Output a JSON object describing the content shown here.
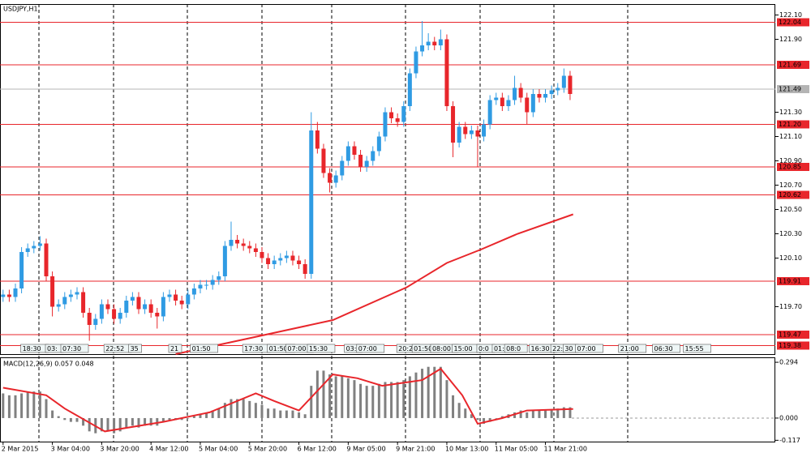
{
  "chart_data": {
    "type": "candlestick",
    "title": "USDJPY,H1",
    "x": [
      0,
      2,
      4,
      6,
      8,
      10,
      12,
      14,
      16,
      18,
      20,
      22,
      24,
      26,
      28,
      30,
      32,
      34,
      36,
      38,
      40,
      42,
      44,
      46,
      48,
      50,
      52,
      54,
      56,
      58,
      60,
      62,
      64,
      66,
      68,
      70,
      72,
      74,
      76,
      78,
      80,
      82,
      84,
      86,
      88,
      90,
      92,
      94,
      96,
      98,
      100,
      102,
      104,
      106,
      108,
      110,
      112,
      114,
      116,
      118,
      120,
      122,
      124,
      126,
      128,
      130,
      132,
      134,
      136,
      138,
      140,
      142,
      144,
      146,
      148,
      150,
      152,
      154,
      156,
      158,
      160,
      162,
      164,
      166,
      168,
      170,
      172,
      174,
      176,
      178,
      180,
      182,
      184
    ],
    "open": [
      119.78,
      119.8,
      119.78,
      119.85,
      120.15,
      120.18,
      120.2,
      120.22,
      119.95,
      119.7,
      119.72,
      119.78,
      119.8,
      119.82,
      119.65,
      119.55,
      119.6,
      119.72,
      119.68,
      119.6,
      119.65,
      119.75,
      119.78,
      119.68,
      119.72,
      119.65,
      119.62,
      119.78,
      119.8,
      119.75,
      119.72,
      119.8,
      119.85,
      119.88,
      119.88,
      119.92,
      119.95,
      120.2,
      120.25,
      120.22,
      120.2,
      120.18,
      120.15,
      120.1,
      120.05,
      120.08,
      120.1,
      120.12,
      120.08,
      120.05,
      119.97,
      121.15,
      121.0,
      120.8,
      120.72,
      120.78,
      120.9,
      121.02,
      120.95,
      120.85,
      120.9,
      120.98,
      121.1,
      121.3,
      121.25,
      121.22,
      121.35,
      121.62,
      121.8,
      121.85,
      121.88,
      121.85,
      121.9,
      121.35,
      121.05,
      121.18,
      121.12,
      121.15,
      121.1,
      121.2,
      121.4,
      121.42,
      121.35,
      121.4,
      121.5,
      121.42,
      121.3,
      121.45,
      121.42,
      121.45,
      121.48,
      121.5,
      121.6
    ],
    "high": [
      119.84,
      119.84,
      119.89,
      120.19,
      120.22,
      120.24,
      120.28,
      120.26,
      119.99,
      119.76,
      119.82,
      119.84,
      119.86,
      119.86,
      119.69,
      119.64,
      119.76,
      119.76,
      119.72,
      119.69,
      119.79,
      119.82,
      119.82,
      119.76,
      119.76,
      119.69,
      119.82,
      119.84,
      119.84,
      119.79,
      119.84,
      119.89,
      119.92,
      119.92,
      119.96,
      119.99,
      120.24,
      120.4,
      120.29,
      120.26,
      120.24,
      120.22,
      120.19,
      120.14,
      120.12,
      120.14,
      120.16,
      120.16,
      120.12,
      120.09,
      121.3,
      121.22,
      121.04,
      120.84,
      120.82,
      120.94,
      121.06,
      121.06,
      120.99,
      120.94,
      121.02,
      121.14,
      121.34,
      121.34,
      121.29,
      121.39,
      121.66,
      121.84,
      122.05,
      121.95,
      121.92,
      121.98,
      121.94,
      121.39,
      121.22,
      121.22,
      121.19,
      121.19,
      121.24,
      121.44,
      121.46,
      121.46,
      121.44,
      121.6,
      121.54,
      121.46,
      121.49,
      121.49,
      121.49,
      121.52,
      121.54,
      121.66,
      121.64
    ],
    "low": [
      119.74,
      119.74,
      119.74,
      119.81,
      120.11,
      120.14,
      120.16,
      119.91,
      119.62,
      119.66,
      119.68,
      119.74,
      119.76,
      119.61,
      119.42,
      119.51,
      119.56,
      119.64,
      119.56,
      119.56,
      119.61,
      119.71,
      119.64,
      119.64,
      119.61,
      119.52,
      119.58,
      119.74,
      119.71,
      119.68,
      119.68,
      119.76,
      119.81,
      119.84,
      119.84,
      119.88,
      119.91,
      120.16,
      120.18,
      120.16,
      120.14,
      120.11,
      120.06,
      120.01,
      120.01,
      120.04,
      120.06,
      120.04,
      120.01,
      119.93,
      119.93,
      120.96,
      120.76,
      120.64,
      120.68,
      120.74,
      120.86,
      120.91,
      120.81,
      120.81,
      120.86,
      120.94,
      121.06,
      121.21,
      121.18,
      121.18,
      121.31,
      121.58,
      121.76,
      121.81,
      121.81,
      121.81,
      121.31,
      120.93,
      121.01,
      121.08,
      121.08,
      120.85,
      121.06,
      121.16,
      121.36,
      121.31,
      121.31,
      121.36,
      121.38,
      121.2,
      121.26,
      121.38,
      121.38,
      121.41,
      121.44,
      121.46,
      121.4
    ],
    "close": [
      119.8,
      119.78,
      119.85,
      120.15,
      120.18,
      120.2,
      120.22,
      119.95,
      119.7,
      119.72,
      119.78,
      119.8,
      119.82,
      119.65,
      119.55,
      119.6,
      119.72,
      119.68,
      119.6,
      119.65,
      119.75,
      119.78,
      119.68,
      119.72,
      119.65,
      119.62,
      119.78,
      119.8,
      119.75,
      119.72,
      119.8,
      119.85,
      119.88,
      119.88,
      119.92,
      119.95,
      120.2,
      120.25,
      120.22,
      120.2,
      120.18,
      120.15,
      120.1,
      120.05,
      120.08,
      120.1,
      120.12,
      120.08,
      120.05,
      119.97,
      121.15,
      121.0,
      120.8,
      120.72,
      120.78,
      120.9,
      121.02,
      120.95,
      120.85,
      120.9,
      120.98,
      121.1,
      121.3,
      121.25,
      121.22,
      121.35,
      121.62,
      121.8,
      121.85,
      121.88,
      121.85,
      121.9,
      121.35,
      121.05,
      121.18,
      121.12,
      121.15,
      121.1,
      121.2,
      121.4,
      121.42,
      121.35,
      121.4,
      121.5,
      121.42,
      121.3,
      121.45,
      121.42,
      121.45,
      121.48,
      121.5,
      121.6,
      121.45
    ],
    "up_color": "#2f9be3",
    "down_color": "#e8262b",
    "xlim": [
      -1,
      250.6
    ],
    "ylim": [
      119.31,
      122.19
    ],
    "yticks": [
      {
        "value": 122.1,
        "label": "122.10"
      },
      {
        "value": 121.9,
        "label": "121.90"
      },
      {
        "value": 121.3,
        "label": "121.30"
      },
      {
        "value": 121.1,
        "label": "121.10"
      },
      {
        "value": 120.9,
        "label": "120.90"
      },
      {
        "value": 120.7,
        "label": "120.70"
      },
      {
        "value": 120.5,
        "label": "120.50"
      },
      {
        "value": 120.3,
        "label": "120.30"
      },
      {
        "value": 120.1,
        "label": "120.10"
      },
      {
        "value": 119.7,
        "label": "119.70"
      }
    ],
    "xticks": [
      {
        "value": 0,
        "label": "2 Mar 2015"
      },
      {
        "value": 16,
        "label": "3 Mar 04:00"
      },
      {
        "value": 32,
        "label": "3 Mar 20:00"
      },
      {
        "value": 48,
        "label": "4 Mar 12:00"
      },
      {
        "value": 64,
        "label": "5 Mar 04:00"
      },
      {
        "value": 80,
        "label": "5 Mar 20:00"
      },
      {
        "value": 96,
        "label": "6 Mar 12:00"
      },
      {
        "value": 112,
        "label": "9 Mar 05:00"
      },
      {
        "value": 128,
        "label": "9 Mar 21:00"
      },
      {
        "value": 144,
        "label": "10 Mar 13:00"
      },
      {
        "value": 160,
        "label": "11 Mar 05:00"
      },
      {
        "value": 176,
        "label": "11 Mar 21:00"
      }
    ],
    "levels": {
      "color": "#e8262b",
      "values": [
        122.04,
        121.69,
        {
          "value": 121.2,
          "label": "121.20"
        },
        120.85,
        120.62,
        119.91,
        119.47,
        119.38
      ]
    },
    "current": {
      "color": "#b4b4b4",
      "value": 121.49
    },
    "moving_average": {
      "color": "#e8262b",
      "x": [
        56,
        78,
        107,
        131,
        144,
        155,
        167,
        185
      ],
      "values": [
        119.31,
        119.43,
        119.59,
        119.86,
        120.06,
        120.17,
        120.3,
        120.46
      ]
    },
    "markers": [
      {
        "x": 6,
        "label": "18:30"
      },
      {
        "x": 14,
        "label": "03:"
      },
      {
        "x": 19,
        "label": "07:30"
      },
      {
        "x": 33,
        "label": "22:52"
      },
      {
        "x": 41,
        "label": "35"
      },
      {
        "x": 54,
        "label": "21"
      },
      {
        "x": 61,
        "label": "01:50"
      },
      {
        "x": 78,
        "label": "17:30"
      },
      {
        "x": 86,
        "label": "01:50"
      },
      {
        "x": 92,
        "label": "07:00"
      },
      {
        "x": 99,
        "label": "15:30"
      },
      {
        "x": 111,
        "label": "03:"
      },
      {
        "x": 115,
        "label": "07:00"
      },
      {
        "x": 128,
        "label": "20:2"
      },
      {
        "x": 133,
        "label": "01:50"
      },
      {
        "x": 139,
        "label": "08:00"
      },
      {
        "x": 146,
        "label": "15:00"
      },
      {
        "x": 154,
        "label": "0:0"
      },
      {
        "x": 159,
        "label": "01:50"
      },
      {
        "x": 163,
        "label": "08:0"
      },
      {
        "x": 171,
        "label": "16:30"
      },
      {
        "x": 178,
        "label": "22:30"
      },
      {
        "x": 182,
        "label": "30"
      },
      {
        "x": 186,
        "label": "07:00"
      },
      {
        "x": 200,
        "label": "21:00"
      },
      {
        "x": 211,
        "label": "06:30"
      },
      {
        "x": 221,
        "label": "15:55"
      }
    ],
    "macd": {
      "type": "bar",
      "title": "MACD(12,26,9) 0.057 0.048",
      "color": "#808080",
      "values": [
        0.13,
        0.12,
        0.12,
        0.13,
        0.14,
        0.14,
        0.14,
        0.1,
        0.04,
        0.01,
        -0.01,
        -0.02,
        -0.02,
        -0.04,
        -0.07,
        -0.08,
        -0.07,
        -0.07,
        -0.08,
        -0.07,
        -0.05,
        -0.04,
        -0.05,
        -0.04,
        -0.04,
        -0.04,
        -0.02,
        -0.01,
        -0.01,
        -0.01,
        0.0,
        0.01,
        0.02,
        0.03,
        0.04,
        0.05,
        0.08,
        0.1,
        0.1,
        0.1,
        0.09,
        0.08,
        0.07,
        0.05,
        0.05,
        0.04,
        0.04,
        0.04,
        0.03,
        0.02,
        0.17,
        0.25,
        0.25,
        0.23,
        0.22,
        0.22,
        0.21,
        0.2,
        0.18,
        0.17,
        0.17,
        0.18,
        0.19,
        0.19,
        0.19,
        0.2,
        0.22,
        0.24,
        0.26,
        0.27,
        0.27,
        0.27,
        0.2,
        0.12,
        0.08,
        0.05,
        0.02,
        -0.01,
        -0.03,
        -0.02,
        0.0,
        0.01,
        0.02,
        0.03,
        0.04,
        0.03,
        0.04,
        0.04,
        0.04,
        0.045,
        0.05,
        0.057,
        0.057
      ],
      "signal": {
        "color": "#e8262b",
        "x": [
          0,
          14,
          20,
          33,
          52,
          67,
          82,
          88,
          96,
          107,
          115,
          123,
          136,
          142,
          149,
          154,
          162,
          170,
          185
        ],
        "values": [
          0.16,
          0.12,
          0.05,
          -0.07,
          -0.02,
          0.03,
          0.13,
          0.09,
          0.04,
          0.23,
          0.21,
          0.17,
          0.2,
          0.26,
          0.12,
          -0.03,
          0.0,
          0.04,
          0.048
        ]
      },
      "ylim": [
        -0.124,
        0.32
      ],
      "yticks": [
        0.294,
        {
          "value": 0,
          "label": "0.000"
        },
        -0.117
      ]
    }
  }
}
